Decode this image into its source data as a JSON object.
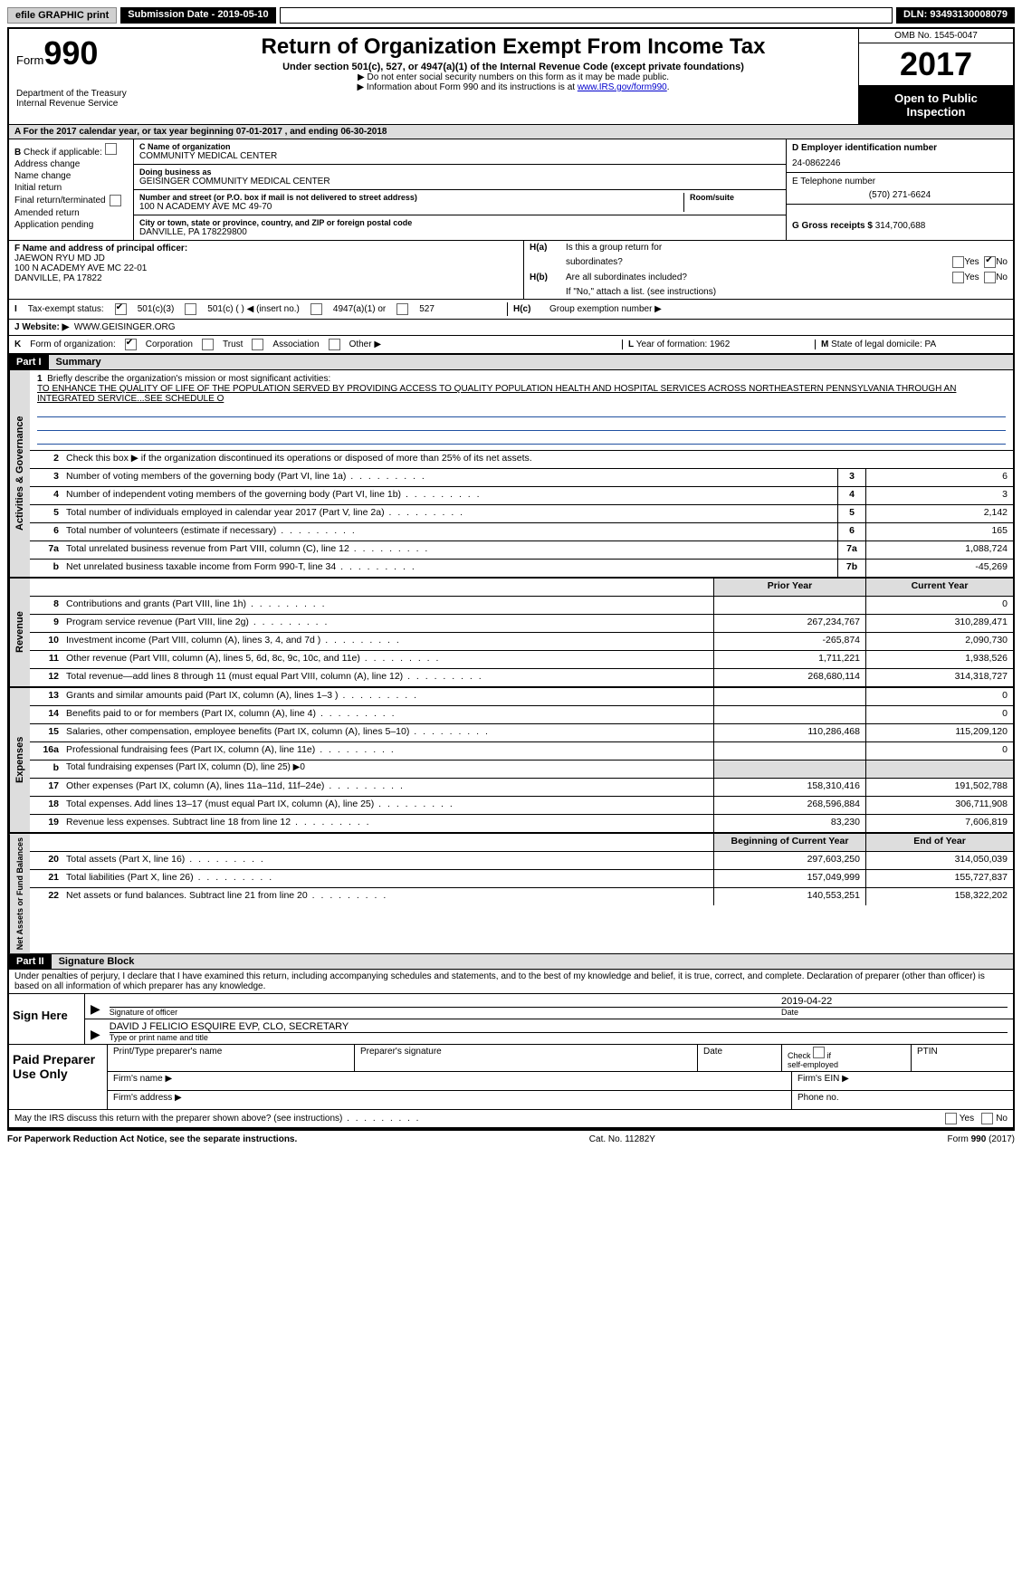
{
  "top": {
    "efile": "efile GRAPHIC print",
    "submission_label": "Submission Date - 2019-05-10",
    "dln_label": "DLN: 93493130008079"
  },
  "header": {
    "form_prefix": "Form",
    "form_num": "990",
    "dept1": "Department of the Treasury",
    "dept2": "Internal Revenue Service",
    "title": "Return of Organization Exempt From Income Tax",
    "subtitle": "Under section 501(c), 527, or 4947(a)(1) of the Internal Revenue Code (except private foundations)",
    "instr1": "▶ Do not enter social security numbers on this form as it may be made public.",
    "instr2_pre": "▶ Information about Form 990 and its instructions is at ",
    "instr2_link": "www.IRS.gov/form990",
    "omb": "OMB No. 1545-0047",
    "year": "2017",
    "open1": "Open to Public",
    "open2": "Inspection"
  },
  "row_a": "A   For the 2017 calendar year, or tax year beginning 07-01-2017       , and ending 06-30-2018",
  "col_b": {
    "label": "B",
    "check_label": "Check if applicable:",
    "items": [
      "Address change",
      "Name change",
      "Initial return",
      "Final return/terminated",
      "Amended return",
      "Application pending"
    ]
  },
  "col_c": {
    "name_label": "C Name of organization",
    "name": "COMMUNITY MEDICAL CENTER",
    "dba_label": "Doing business as",
    "dba": "GEISINGER COMMUNITY MEDICAL CENTER",
    "street_label": "Number and street (or P.O. box if mail is not delivered to street address)",
    "street": "100 N ACADEMY AVE MC 49-70",
    "room_label": "Room/suite",
    "city_label": "City or town, state or province, country, and ZIP or foreign postal code",
    "city": "DANVILLE, PA  178229800"
  },
  "col_d": {
    "ein_label": "D Employer identification number",
    "ein": "24-0862246",
    "tel_label": "E Telephone number",
    "tel": "(570) 271-6624",
    "gross_label": "G Gross receipts $",
    "gross": "314,700,688"
  },
  "section_f": {
    "label": "F  Name and address of principal officer:",
    "name": "JAEWON RYU MD JD",
    "addr1": "100 N ACADEMY AVE MC 22-01",
    "addr2": "DANVILLE, PA   17822"
  },
  "section_h": {
    "ha_label": "H(a)",
    "ha_text": "Is this a group return for",
    "ha_text2": "subordinates?",
    "hb_label": "H(b)",
    "hb_text": "Are all subordinates included?",
    "hb_note": "If \"No,\" attach a list. (see instructions)",
    "hc_label": "H(c)",
    "hc_text": "Group exemption number ▶",
    "yes": "Yes",
    "no": "No"
  },
  "section_i": {
    "label": "I",
    "text": "Tax-exempt status:",
    "opt1": "501(c)(3)",
    "opt2": "501(c) (  ) ◀ (insert no.)",
    "opt3": "4947(a)(1) or",
    "opt4": "527"
  },
  "section_j": {
    "label": "J",
    "text": "Website: ▶",
    "value": "WWW.GEISINGER.ORG"
  },
  "section_k": {
    "label": "K",
    "text": "Form of organization:",
    "corp": "Corporation",
    "trust": "Trust",
    "assoc": "Association",
    "other": "Other ▶"
  },
  "section_l": {
    "l_label": "L",
    "l_text": "Year of formation: 1962",
    "m_label": "M",
    "m_text": "State of legal domicile: PA"
  },
  "part1": {
    "header": "Part I",
    "title": "Summary",
    "line1_label": "1",
    "line1_text": "Briefly describe the organization's mission or most significant activities:",
    "mission": "TO ENHANCE THE QUALITY OF LIFE OF THE POPULATION SERVED BY PROVIDING ACCESS TO QUALITY POPULATION HEALTH AND HOSPITAL SERVICES ACROSS NORTHEASTERN PENNSYLVANIA THROUGH AN INTEGRATED SERVICE...SEE SCHEDULE O",
    "line2_label": "2",
    "line2_text": "Check this box ▶      if the organization discontinued its operations or disposed of more than 25% of its net assets.",
    "vert1": "Activities & Governance",
    "vert2": "Revenue",
    "vert3": "Expenses",
    "vert4": "Net Assets or Fund Balances",
    "prior_year": "Prior Year",
    "current_year": "Current Year",
    "begin_year": "Beginning of Current Year",
    "end_year": "End of Year"
  },
  "lines_gov": [
    {
      "n": "3",
      "t": "Number of voting members of the governing body (Part VI, line 1a)",
      "box": "3",
      "v": "6"
    },
    {
      "n": "4",
      "t": "Number of independent voting members of the governing body (Part VI, line 1b)",
      "box": "4",
      "v": "3"
    },
    {
      "n": "5",
      "t": "Total number of individuals employed in calendar year 2017 (Part V, line 2a)",
      "box": "5",
      "v": "2,142"
    },
    {
      "n": "6",
      "t": "Total number of volunteers (estimate if necessary)",
      "box": "6",
      "v": "165"
    },
    {
      "n": "7a",
      "t": "Total unrelated business revenue from Part VIII, column (C), line 12",
      "box": "7a",
      "v": "1,088,724"
    },
    {
      "n": "b",
      "t": "Net unrelated business taxable income from Form 990-T, line 34",
      "box": "7b",
      "v": "-45,269"
    }
  ],
  "lines_rev": [
    {
      "n": "8",
      "t": "Contributions and grants (Part VIII, line 1h)",
      "p": "",
      "c": "0"
    },
    {
      "n": "9",
      "t": "Program service revenue (Part VIII, line 2g)",
      "p": "267,234,767",
      "c": "310,289,471"
    },
    {
      "n": "10",
      "t": "Investment income (Part VIII, column (A), lines 3, 4, and 7d )",
      "p": "-265,874",
      "c": "2,090,730"
    },
    {
      "n": "11",
      "t": "Other revenue (Part VIII, column (A), lines 5, 6d, 8c, 9c, 10c, and 11e)",
      "p": "1,711,221",
      "c": "1,938,526"
    },
    {
      "n": "12",
      "t": "Total revenue—add lines 8 through 11 (must equal Part VIII, column (A), line 12)",
      "p": "268,680,114",
      "c": "314,318,727"
    }
  ],
  "lines_exp": [
    {
      "n": "13",
      "t": "Grants and similar amounts paid (Part IX, column (A), lines 1–3 )",
      "p": "",
      "c": "0"
    },
    {
      "n": "14",
      "t": "Benefits paid to or for members (Part IX, column (A), line 4)",
      "p": "",
      "c": "0"
    },
    {
      "n": "15",
      "t": "Salaries, other compensation, employee benefits (Part IX, column (A), lines 5–10)",
      "p": "110,286,468",
      "c": "115,209,120"
    },
    {
      "n": "16a",
      "t": "Professional fundraising fees (Part IX, column (A), line 11e)",
      "p": "",
      "c": "0"
    },
    {
      "n": "b",
      "t": "Total fundraising expenses (Part IX, column (D), line 25) ▶0",
      "p": "GRAY",
      "c": "GRAY"
    },
    {
      "n": "17",
      "t": "Other expenses (Part IX, column (A), lines 11a–11d, 11f–24e)",
      "p": "158,310,416",
      "c": "191,502,788"
    },
    {
      "n": "18",
      "t": "Total expenses. Add lines 13–17 (must equal Part IX, column (A), line 25)",
      "p": "268,596,884",
      "c": "306,711,908"
    },
    {
      "n": "19",
      "t": "Revenue less expenses. Subtract line 18 from line 12",
      "p": "83,230",
      "c": "7,606,819"
    }
  ],
  "lines_net": [
    {
      "n": "20",
      "t": "Total assets (Part X, line 16)",
      "p": "297,603,250",
      "c": "314,050,039"
    },
    {
      "n": "21",
      "t": "Total liabilities (Part X, line 26)",
      "p": "157,049,999",
      "c": "155,727,837"
    },
    {
      "n": "22",
      "t": "Net assets or fund balances. Subtract line 21 from line 20",
      "p": "140,553,251",
      "c": "158,322,202"
    }
  ],
  "part2": {
    "header": "Part II",
    "title": "Signature Block",
    "penalty": "Under penalties of perjury, I declare that I have examined this return, including accompanying schedules and statements, and to the best of my knowledge and belief, it is true, correct, and complete. Declaration of preparer (other than officer) is based on all information of which preparer has any knowledge.",
    "sign_here": "Sign Here",
    "sig_officer": "Signature of officer",
    "sig_date": "2019-04-22",
    "date_label": "Date",
    "officer_name": "DAVID J FELICIO ESQUIRE  EVP, CLO, SECRETARY",
    "type_name": "Type or print name and title",
    "paid": "Paid Preparer Use Only",
    "prep_name_label": "Print/Type preparer's name",
    "prep_sig_label": "Preparer's signature",
    "prep_date_label": "Date",
    "check_self": "Check       if self-employed",
    "ptin": "PTIN",
    "firm_name": "Firm's name    ▶",
    "firm_addr": "Firm's address ▶",
    "firm_ein": "Firm's EIN ▶",
    "phone": "Phone no.",
    "discuss": "May the IRS discuss this return with the preparer shown above? (see instructions)",
    "yes": "Yes",
    "no": "No"
  },
  "footer": {
    "left": "For Paperwork Reduction Act Notice, see the separate instructions.",
    "mid": "Cat. No. 11282Y",
    "right": "Form 990 (2017)"
  }
}
